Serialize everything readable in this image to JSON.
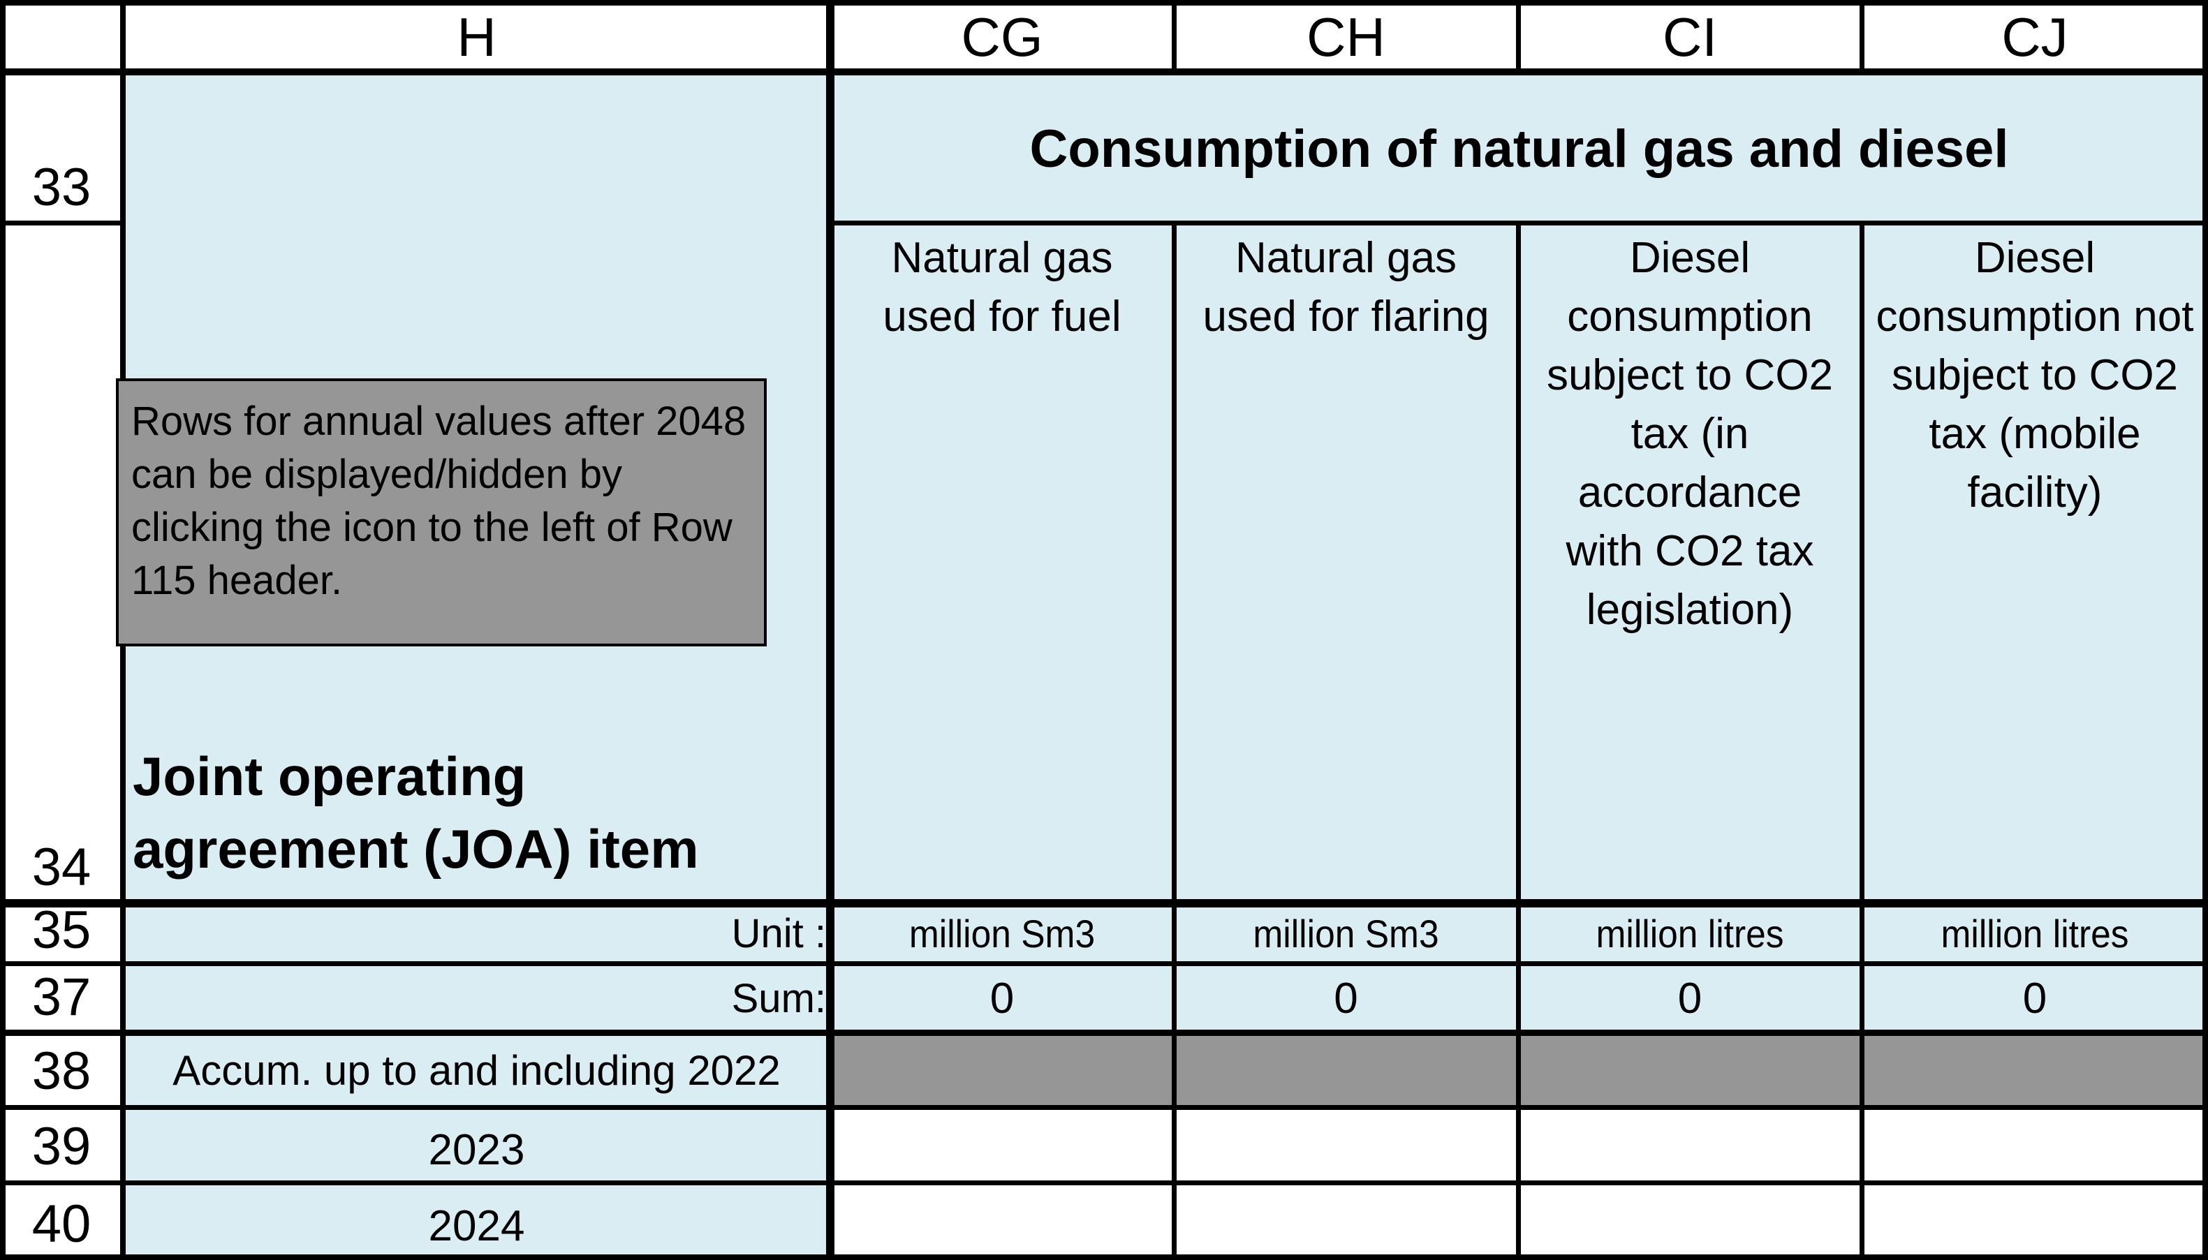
{
  "column_headers": [
    "H",
    "CG",
    "CH",
    "CI",
    "CJ"
  ],
  "row_numbers": [
    "33",
    "34",
    "35",
    "37",
    "38",
    "39",
    "40"
  ],
  "table": {
    "section_title": "Consumption of natural gas and diesel",
    "h_label": "Joint operating agreement (JOA)  item",
    "columns": [
      {
        "label": "Natural gas used for fuel",
        "unit": "million Sm3",
        "sum": "0"
      },
      {
        "label": "Natural gas used for flaring",
        "unit": "million Sm3",
        "sum": "0"
      },
      {
        "label": "Diesel consumption subject to CO2 tax (in accordance with CO2 tax legislation)",
        "unit": "million litres",
        "sum": "0"
      },
      {
        "label": "Diesel consumption not subject to CO2 tax (mobile facility)",
        "unit": "million litres",
        "sum": "0"
      }
    ],
    "unit_label": "Unit :",
    "sum_label": "Sum:",
    "accum_label": "Accum. up to and including 2022",
    "years": [
      "2023",
      "2024"
    ]
  },
  "note": "Rows for annual values after 2048 can be displayed/hidden by clicking the icon to the left of Row 115 header.",
  "colors": {
    "light_blue": "#daedf3",
    "grey": "#969696",
    "border": "#000000"
  }
}
